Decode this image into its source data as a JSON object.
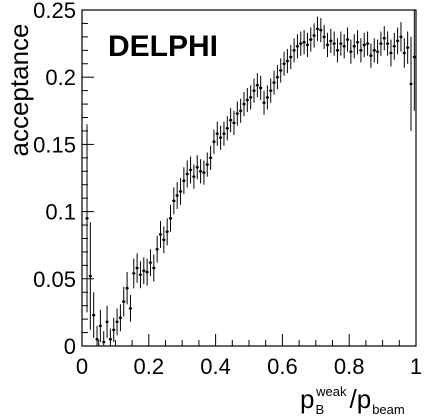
{
  "chart_data": {
    "type": "scatter",
    "xlim": [
      0,
      1
    ],
    "ylim": [
      0,
      0.25
    ],
    "xticks": [
      0,
      0.2,
      0.4,
      0.6,
      0.8,
      1
    ],
    "xtick_labels": [
      "0",
      "0.2",
      "0.4",
      "0.6",
      "0.8",
      "1"
    ],
    "yticks": [
      0,
      0.05,
      0.1,
      0.15,
      0.2,
      0.25
    ],
    "ytick_labels": [
      "0",
      "0.05",
      "0.1",
      "0.15",
      "0.2",
      "0.25"
    ],
    "ylabel": "acceptance",
    "xlabel": {
      "p": "p",
      "sub1": "B",
      "sup1": "weak",
      "slash": "/",
      "p2": "p",
      "sub2": "beam"
    },
    "annotation": "DELPHI",
    "grid": false,
    "legend": "none",
    "series": [
      {
        "x": [
          0.015,
          0.025,
          0.035,
          0.045,
          0.055,
          0.065,
          0.075,
          0.085,
          0.095,
          0.105,
          0.115,
          0.125,
          0.135,
          0.145,
          0.155,
          0.165,
          0.175,
          0.185,
          0.195,
          0.205,
          0.215,
          0.225,
          0.235,
          0.245,
          0.255,
          0.265,
          0.275,
          0.285,
          0.295,
          0.305,
          0.315,
          0.325,
          0.335,
          0.345,
          0.355,
          0.365,
          0.375,
          0.385,
          0.395,
          0.405,
          0.415,
          0.425,
          0.435,
          0.445,
          0.455,
          0.465,
          0.475,
          0.485,
          0.495,
          0.505,
          0.515,
          0.525,
          0.535,
          0.545,
          0.555,
          0.565,
          0.575,
          0.585,
          0.595,
          0.605,
          0.615,
          0.625,
          0.635,
          0.645,
          0.655,
          0.665,
          0.675,
          0.685,
          0.695,
          0.705,
          0.715,
          0.725,
          0.735,
          0.745,
          0.755,
          0.765,
          0.775,
          0.785,
          0.795,
          0.805,
          0.815,
          0.825,
          0.835,
          0.845,
          0.855,
          0.865,
          0.875,
          0.885,
          0.895,
          0.905,
          0.915,
          0.925,
          0.935,
          0.945,
          0.955,
          0.965,
          0.975,
          0.985,
          0.995
        ],
        "y": [
          0.095,
          0.052,
          0.023,
          0.005,
          0.015,
          0.003,
          0.018,
          0.005,
          0.012,
          0.018,
          0.021,
          0.033,
          0.043,
          0.028,
          0.054,
          0.058,
          0.053,
          0.056,
          0.055,
          0.062,
          0.058,
          0.072,
          0.083,
          0.079,
          0.085,
          0.095,
          0.108,
          0.112,
          0.115,
          0.123,
          0.128,
          0.131,
          0.126,
          0.133,
          0.13,
          0.129,
          0.135,
          0.14,
          0.152,
          0.158,
          0.155,
          0.158,
          0.162,
          0.168,
          0.166,
          0.173,
          0.175,
          0.18,
          0.183,
          0.185,
          0.19,
          0.194,
          0.192,
          0.181,
          0.185,
          0.19,
          0.196,
          0.2,
          0.205,
          0.21,
          0.212,
          0.215,
          0.22,
          0.223,
          0.225,
          0.226,
          0.224,
          0.228,
          0.231,
          0.236,
          0.235,
          0.23,
          0.224,
          0.227,
          0.225,
          0.22,
          0.225,
          0.223,
          0.228,
          0.219,
          0.223,
          0.226,
          0.22,
          0.224,
          0.225,
          0.216,
          0.22,
          0.219,
          0.225,
          0.229,
          0.225,
          0.218,
          0.223,
          0.227,
          0.23,
          0.218,
          0.222,
          0.195,
          0.215
        ],
        "err": [
          0.07,
          0.04,
          0.017,
          0.01,
          0.012,
          0.008,
          0.012,
          0.008,
          0.009,
          0.01,
          0.01,
          0.011,
          0.012,
          0.01,
          0.011,
          0.011,
          0.01,
          0.01,
          0.01,
          0.01,
          0.01,
          0.01,
          0.01,
          0.01,
          0.01,
          0.01,
          0.01,
          0.01,
          0.01,
          0.01,
          0.01,
          0.01,
          0.009,
          0.009,
          0.009,
          0.009,
          0.009,
          0.009,
          0.009,
          0.009,
          0.009,
          0.009,
          0.009,
          0.009,
          0.009,
          0.009,
          0.009,
          0.009,
          0.009,
          0.009,
          0.009,
          0.009,
          0.009,
          0.009,
          0.009,
          0.009,
          0.009,
          0.009,
          0.009,
          0.009,
          0.009,
          0.009,
          0.009,
          0.009,
          0.009,
          0.009,
          0.009,
          0.009,
          0.009,
          0.009,
          0.009,
          0.009,
          0.009,
          0.009,
          0.009,
          0.009,
          0.009,
          0.009,
          0.009,
          0.009,
          0.009,
          0.009,
          0.009,
          0.009,
          0.009,
          0.009,
          0.009,
          0.009,
          0.009,
          0.009,
          0.009,
          0.01,
          0.01,
          0.01,
          0.011,
          0.011,
          0.012,
          0.035,
          0.04
        ],
        "xerr": 0.005
      }
    ]
  },
  "colors": {
    "background": "#ffffff",
    "axis": "#000000",
    "marker": "#000000"
  }
}
